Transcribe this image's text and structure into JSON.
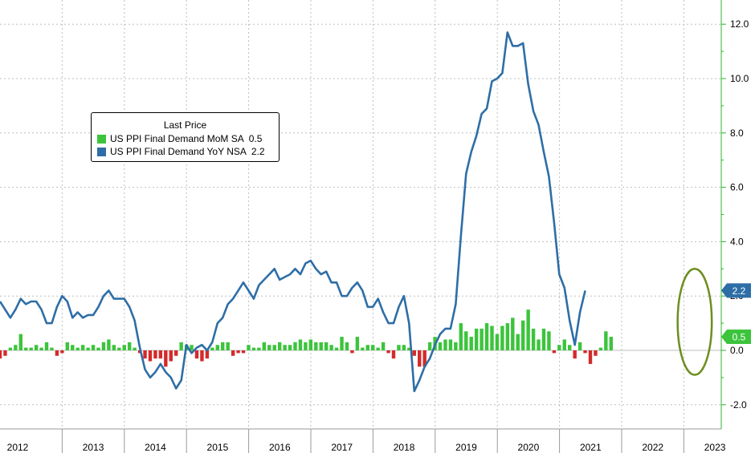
{
  "chart_data": {
    "type": "line+bar",
    "legend": {
      "title": "Last Price",
      "entries": [
        {
          "name": "US PPI Final Demand MoM SA",
          "last": "0.5",
          "color": "#3cc43c",
          "kind": "bar"
        },
        {
          "name": "US PPI Final Demand YoY NSA",
          "last": "2.2",
          "color": "#2e6ea6",
          "kind": "line"
        }
      ]
    },
    "x_range": [
      2012.0,
      2023.7
    ],
    "y_range": [
      -2.5,
      12.6
    ],
    "y_ticks": [
      -2.0,
      0.0,
      2.0,
      4.0,
      6.0,
      8.0,
      10.0,
      12.0
    ],
    "y_tick_labels": [
      "-2.0",
      "0.0",
      "2.0",
      "4.0",
      "6.0",
      "8.0",
      "10.0",
      "12.0"
    ],
    "x_labels": [
      "2012",
      "2013",
      "2014",
      "2015",
      "2016",
      "2017",
      "2018",
      "2019",
      "2020",
      "2021",
      "2022",
      "2023"
    ],
    "series": [
      {
        "name": "US PPI Final Demand YoY NSA",
        "type": "line",
        "color": "#2e6ea6",
        "start": 2012.0,
        "step": 0.0833,
        "values": [
          1.8,
          1.5,
          1.2,
          1.5,
          1.9,
          1.7,
          1.8,
          1.8,
          1.5,
          1.0,
          1.0,
          1.6,
          2.0,
          1.8,
          1.2,
          1.4,
          1.2,
          1.3,
          1.3,
          1.6,
          2.0,
          2.2,
          1.9,
          1.9,
          1.9,
          1.6,
          1.1,
          0.1,
          -0.7,
          -1.0,
          -0.8,
          -0.5,
          -0.8,
          -1.0,
          -1.4,
          -1.1,
          0.2,
          -0.1,
          0.1,
          0.2,
          0.0,
          0.3,
          1.0,
          1.2,
          1.7,
          1.9,
          2.2,
          2.5,
          2.2,
          1.9,
          2.4,
          2.6,
          2.8,
          3.0,
          2.6,
          2.7,
          2.8,
          3.0,
          2.8,
          3.2,
          3.3,
          3.0,
          2.8,
          2.9,
          2.5,
          2.5,
          2.0,
          2.0,
          2.3,
          2.5,
          2.2,
          1.6,
          1.6,
          1.9,
          1.4,
          1.0,
          1.0,
          1.6,
          2.0,
          1.0,
          -1.5,
          -1.1,
          -0.6,
          -0.3,
          0.2,
          0.6,
          0.8,
          0.8,
          1.7,
          4.2,
          6.5,
          7.3,
          7.9,
          8.7,
          8.9,
          9.9,
          10.0,
          10.2,
          11.7,
          11.2,
          11.2,
          11.3,
          9.8,
          8.8,
          8.3,
          7.3,
          6.4,
          4.7,
          2.8,
          2.3,
          1.1,
          0.2,
          1.4,
          2.2
        ]
      },
      {
        "name": "US PPI Final Demand MoM SA",
        "type": "bar",
        "color_positive": "#3cc43c",
        "color_negative": "#d42a2a",
        "start": 2012.0,
        "step": 0.0833,
        "values": [
          -0.3,
          -0.2,
          0.1,
          0.2,
          0.6,
          0.1,
          0.1,
          0.2,
          0.1,
          0.3,
          0.1,
          -0.2,
          -0.1,
          0.3,
          0.2,
          0.1,
          0.2,
          0.1,
          0.2,
          0.1,
          0.3,
          0.4,
          0.2,
          0.1,
          0.2,
          0.3,
          0.1,
          -0.1,
          -0.3,
          -0.4,
          -0.3,
          -0.3,
          -0.6,
          -0.4,
          -0.2,
          0.3,
          0.2,
          0.2,
          -0.3,
          -0.4,
          -0.3,
          0.1,
          0.2,
          0.3,
          0.3,
          -0.2,
          -0.1,
          -0.1,
          0.2,
          0.1,
          0.1,
          0.3,
          0.2,
          0.2,
          0.3,
          0.2,
          0.2,
          0.3,
          0.4,
          0.3,
          0.4,
          0.3,
          0.3,
          0.3,
          0.2,
          0.1,
          0.5,
          0.3,
          -0.1,
          0.5,
          0.1,
          0.2,
          0.2,
          0.1,
          0.3,
          -0.1,
          -0.3,
          0.2,
          0.2,
          0.1,
          -0.2,
          -0.6,
          -0.6,
          0.3,
          0.5,
          0.3,
          0.4,
          0.4,
          0.3,
          1.0,
          0.7,
          0.5,
          0.8,
          0.8,
          1.0,
          0.9,
          0.6,
          0.9,
          1.0,
          1.2,
          0.6,
          1.1,
          1.5,
          0.8,
          0.4,
          0.8,
          0.7,
          -0.1,
          0.2,
          0.4,
          0.2,
          -0.3,
          0.3,
          -0.1,
          -0.5,
          -0.2,
          0.1,
          0.7,
          0.5
        ]
      }
    ],
    "last_value_badges": [
      {
        "label": "2.2",
        "value": 2.2,
        "color": "#2e6ea6"
      },
      {
        "label": "0.5",
        "value": 0.5,
        "color": "#3cc43c"
      }
    ],
    "annotation": {
      "shape": "ellipse",
      "color": "#6d8e1f",
      "x_from": 2022.9,
      "x_to": 2023.45,
      "y_from": -0.9,
      "y_to": 3.0
    }
  }
}
